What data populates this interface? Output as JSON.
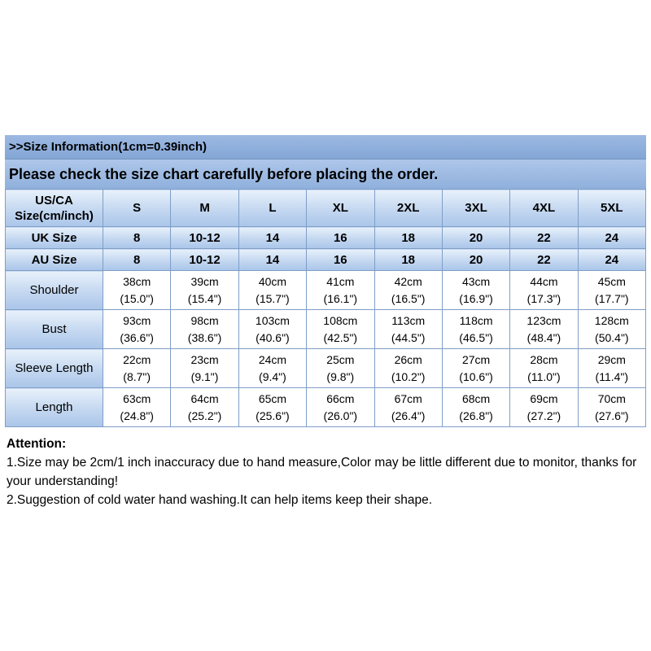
{
  "header": {
    "line1": ">>Size Information(1cm=0.39inch)",
    "line2": "Please check the size chart carefully before placing the order."
  },
  "table": {
    "header": {
      "first_col_lines": [
        "US/CA",
        "Size(cm/inch)"
      ],
      "sizes": [
        "S",
        "M",
        "L",
        "XL",
        "2XL",
        "3XL",
        "4XL",
        "5XL"
      ]
    },
    "size_rows": [
      {
        "label": "UK Size",
        "values": [
          "8",
          "10-12",
          "14",
          "16",
          "18",
          "20",
          "22",
          "24"
        ]
      },
      {
        "label": "AU Size",
        "values": [
          "8",
          "10-12",
          "14",
          "16",
          "18",
          "20",
          "22",
          "24"
        ]
      }
    ],
    "measurements": [
      {
        "label": "Shoulder",
        "cm": [
          "38cm",
          "39cm",
          "40cm",
          "41cm",
          "42cm",
          "43cm",
          "44cm",
          "45cm"
        ],
        "inch": [
          "(15.0\")",
          "(15.4\")",
          "(15.7\")",
          "(16.1\")",
          "(16.5\")",
          "(16.9\")",
          "(17.3\")",
          "(17.7\")"
        ]
      },
      {
        "label": "Bust",
        "cm": [
          "93cm",
          "98cm",
          "103cm",
          "108cm",
          "113cm",
          "118cm",
          "123cm",
          "128cm"
        ],
        "inch": [
          "(36.6\")",
          "(38.6\")",
          "(40.6\")",
          "(42.5\")",
          "(44.5\")",
          "(46.5\")",
          "(48.4\")",
          "(50.4\")"
        ]
      },
      {
        "label": "Sleeve Length",
        "cm": [
          "22cm",
          "23cm",
          "24cm",
          "25cm",
          "26cm",
          "27cm",
          "28cm",
          "29cm"
        ],
        "inch": [
          "(8.7\")",
          "(9.1\")",
          "(9.4\")",
          "(9.8\")",
          "(10.2\")",
          "(10.6\")",
          "(11.0\")",
          "(11.4\")"
        ]
      },
      {
        "label": "Length",
        "cm": [
          "63cm",
          "64cm",
          "65cm",
          "66cm",
          "67cm",
          "68cm",
          "69cm",
          "70cm"
        ],
        "inch": [
          "(24.8\")",
          "(25.2\")",
          "(25.6\")",
          "(26.0\")",
          "(26.4\")",
          "(26.8\")",
          "(27.2\")",
          "(27.6\")"
        ]
      }
    ]
  },
  "notes": {
    "title": "Attention:",
    "lines": [
      "1.Size may be 2cm/1 inch inaccuracy due to hand measure,Color may be little different due to monitor, thanks for your understanding!",
      "2.Suggestion of cold water hand washing.It can help items keep their shape."
    ]
  },
  "colors": {
    "bar_blue_dark": "#83a6d6",
    "bar_blue_light": "#aec6e9",
    "cell_blue_top": "#e8f1fb",
    "cell_blue_bottom": "#aac5e9",
    "border_blue": "#7f9ec7",
    "text": "#000000",
    "background": "#ffffff"
  }
}
